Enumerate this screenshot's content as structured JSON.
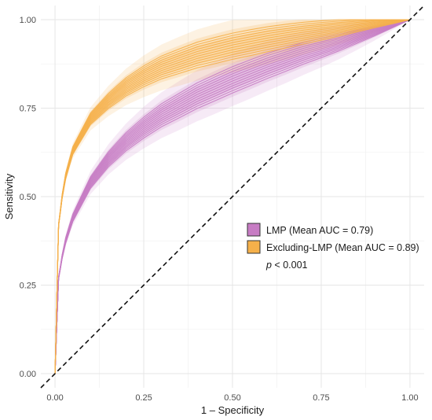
{
  "chart_data": {
    "type": "line",
    "title": "",
    "xlabel": "1 – Specificity",
    "ylabel": "Sensitivity",
    "xlim": [
      -0.04,
      1.04
    ],
    "ylim": [
      -0.04,
      1.04
    ],
    "x_ticks": [
      "0.00",
      "0.25",
      "0.50",
      "0.75",
      "1.00"
    ],
    "y_ticks": [
      "0.00",
      "0.25",
      "0.50",
      "0.75",
      "1.00"
    ],
    "grid": true,
    "legend_position": "right",
    "diagonal_reference": true,
    "series": [
      {
        "name": "LMP (Mean AUC = 0.79)",
        "color": "#C77CC4",
        "auc": 0.79,
        "curve_count": 12,
        "points": [
          [
            0,
            0
          ],
          [
            0.01,
            0.27
          ],
          [
            0.025,
            0.36
          ],
          [
            0.05,
            0.44
          ],
          [
            0.1,
            0.54
          ],
          [
            0.15,
            0.605
          ],
          [
            0.2,
            0.655
          ],
          [
            0.25,
            0.695
          ],
          [
            0.3,
            0.73
          ],
          [
            0.4,
            0.785
          ],
          [
            0.5,
            0.83
          ],
          [
            0.6,
            0.87
          ],
          [
            0.7,
            0.905
          ],
          [
            0.8,
            0.935
          ],
          [
            0.9,
            0.967
          ],
          [
            1.0,
            1.0
          ]
        ]
      },
      {
        "name": "Excluding-LMP (Mean AUC = 0.89)",
        "color": "#F5B04A",
        "auc": 0.89,
        "curve_count": 12,
        "points": [
          [
            0,
            0
          ],
          [
            0.01,
            0.42
          ],
          [
            0.025,
            0.54
          ],
          [
            0.05,
            0.63
          ],
          [
            0.1,
            0.72
          ],
          [
            0.15,
            0.77
          ],
          [
            0.2,
            0.81
          ],
          [
            0.25,
            0.84
          ],
          [
            0.3,
            0.865
          ],
          [
            0.4,
            0.9
          ],
          [
            0.5,
            0.925
          ],
          [
            0.6,
            0.945
          ],
          [
            0.7,
            0.962
          ],
          [
            0.8,
            0.977
          ],
          [
            0.9,
            0.99
          ],
          [
            1.0,
            1.0
          ]
        ]
      }
    ],
    "annotation": {
      "p_italic": "p",
      "p_rest": " < 0.001"
    }
  }
}
